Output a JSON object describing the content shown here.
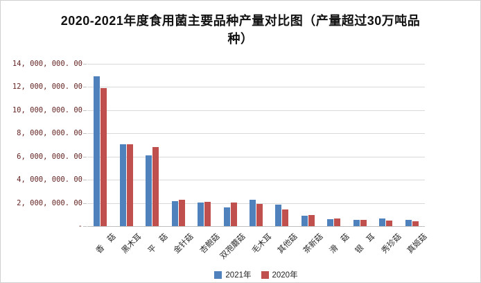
{
  "title": "2020-2021年度食用菌主要品种产量对比图（产量超过30万吨品种）",
  "colors": {
    "series_2021": "#4f81bd",
    "series_2020": "#c0504d",
    "gridline": "#d9d9d9",
    "axis_line": "#bfbfbf",
    "y_label_text": "#632423",
    "x_label_text": "#2b2b2b",
    "frame_border": "#cfcfcf"
  },
  "y_axis": {
    "ticks": [
      {
        "label": "14, 000, 000. 00",
        "value": 14000000
      },
      {
        "label": "12, 000, 000. 00",
        "value": 12000000
      },
      {
        "label": "10, 000, 000. 00",
        "value": 10000000
      },
      {
        "label": "8, 000, 000. 00",
        "value": 8000000
      },
      {
        "label": "6, 000, 000. 00",
        "value": 6000000
      },
      {
        "label": "4, 000, 000. 00",
        "value": 4000000
      },
      {
        "label": "2, 000, 000. 00",
        "value": 2000000
      },
      {
        "label": "-",
        "value": 0
      }
    ]
  },
  "legend": {
    "items": [
      {
        "label": "2021年",
        "color": "#4f81bd"
      },
      {
        "label": "2020年",
        "color": "#c0504d"
      }
    ]
  },
  "chart_data": {
    "type": "bar",
    "title": "2020-2021年度食用菌主要品种产量对比图（产量超过30万吨品种）",
    "categories": [
      "香　菇",
      "黑木耳",
      "平　菇",
      "金针菇",
      "杏鲍菇",
      "双孢蘑菇",
      "毛木耳",
      "其他菇",
      "茶新菇",
      "滑　菇",
      "银　耳",
      "秀珍菇",
      "真姬菇"
    ],
    "series": [
      {
        "name": "2021年",
        "color": "#4f81bd",
        "values": [
          12950000,
          7060000,
          6080000,
          2180000,
          2050000,
          1620000,
          2270000,
          1880000,
          900000,
          620000,
          530000,
          630000,
          560000
        ]
      },
      {
        "name": "2020年",
        "color": "#c0504d",
        "values": [
          11880000,
          7060000,
          6800000,
          2280000,
          2100000,
          2050000,
          1900000,
          1450000,
          960000,
          660000,
          560000,
          460000,
          400000
        ]
      }
    ],
    "xlabel": "",
    "ylabel": "",
    "ylim": [
      0,
      14000000
    ],
    "y_tick_interval": 2000000,
    "grid": true,
    "legend_position": "bottom"
  }
}
